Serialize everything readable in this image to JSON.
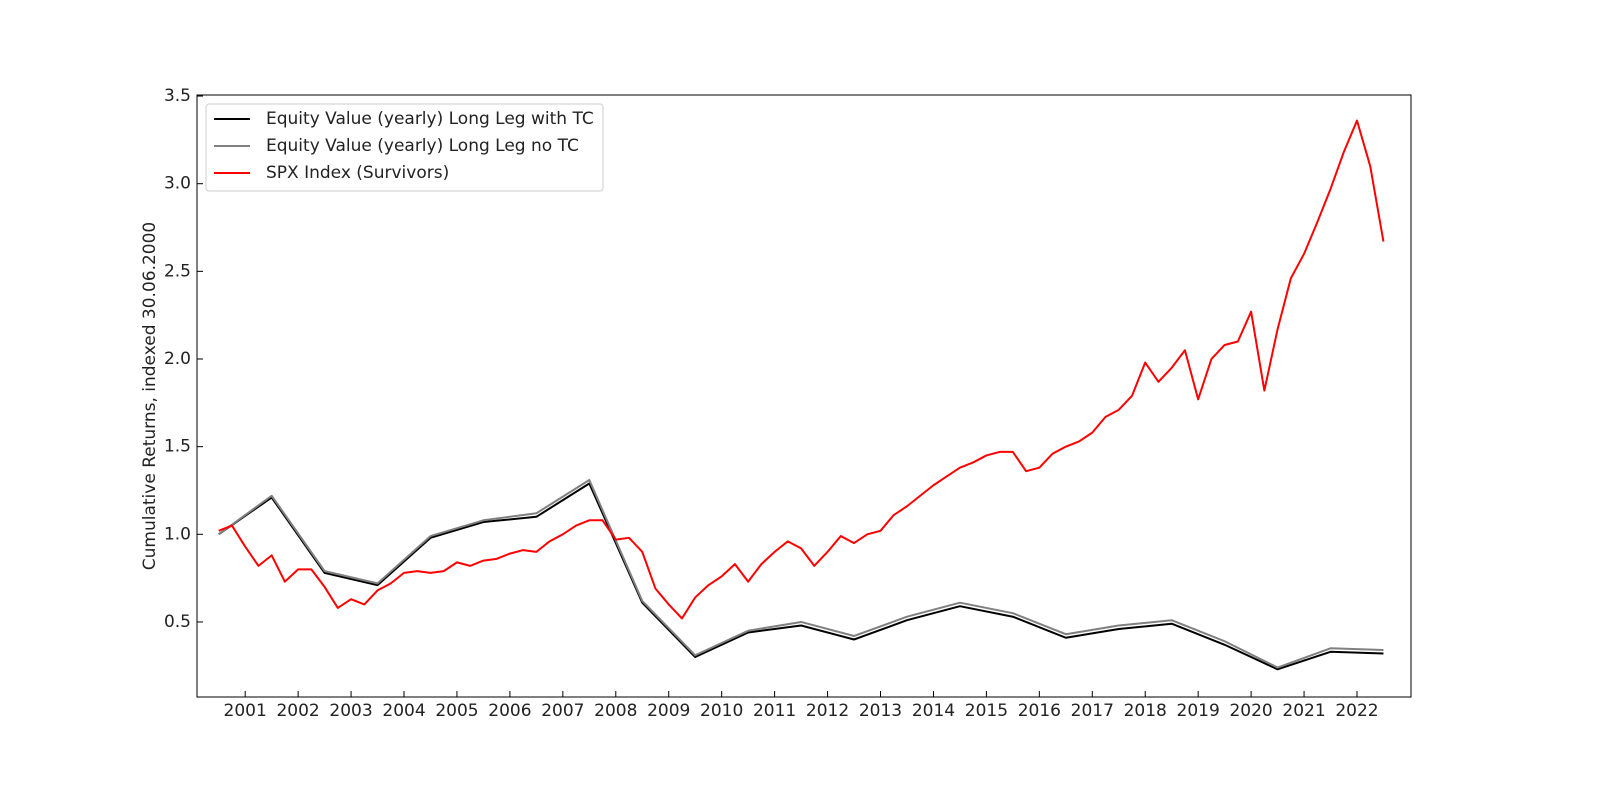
{
  "chart_data": {
    "type": "line",
    "y_label": "Cumulative Returns, indexed 30.06.2000",
    "xlim": [
      2000.09,
      2023.02
    ],
    "xticks": [
      2001,
      2002,
      2003,
      2004,
      2005,
      2006,
      2007,
      2008,
      2009,
      2010,
      2011,
      2012,
      2013,
      2014,
      2015,
      2016,
      2017,
      2018,
      2019,
      2020,
      2021,
      2022
    ],
    "ylim": [
      0.072,
      3.506
    ],
    "yticks": [
      0.5,
      {
        "value": 1,
        "label": "1.0"
      },
      1.5,
      {
        "value": 2,
        "label": "2.0"
      },
      2.5,
      {
        "value": 3,
        "label": "3.0"
      },
      3.5
    ],
    "grid": false,
    "legend": "upper left",
    "series": [
      {
        "name": "Equity Value (yearly) Long Leg with TC",
        "color": "#000000",
        "x": [
          2000.5,
          2001.5,
          2002.5,
          2003.5,
          2004.5,
          2005.5,
          2006.5,
          2007.5,
          2008.5,
          2009.5,
          2010.5,
          2011.5,
          2012.5,
          2013.5,
          2014.5,
          2015.5,
          2016.5,
          2017.5,
          2018.5,
          2019.5,
          2020.5,
          2021.5,
          2022.5
        ],
        "values": [
          1.0,
          1.21,
          0.78,
          0.71,
          0.98,
          1.07,
          1.1,
          1.29,
          0.61,
          0.3,
          0.44,
          0.48,
          0.4,
          0.51,
          0.59,
          0.53,
          0.41,
          0.46,
          0.49,
          0.37,
          0.23,
          0.33,
          0.32
        ]
      },
      {
        "name": "Equity Value (yearly) Long Leg no TC",
        "color": "#808080",
        "x": [
          2000.5,
          2001.5,
          2002.5,
          2003.5,
          2004.5,
          2005.5,
          2006.5,
          2007.5,
          2008.5,
          2009.5,
          2010.5,
          2011.5,
          2012.5,
          2013.5,
          2014.5,
          2015.5,
          2016.5,
          2017.5,
          2018.5,
          2019.5,
          2020.5,
          2021.5,
          2022.5
        ],
        "values": [
          1.0,
          1.22,
          0.79,
          0.72,
          0.99,
          1.08,
          1.12,
          1.31,
          0.62,
          0.31,
          0.45,
          0.5,
          0.42,
          0.53,
          0.61,
          0.55,
          0.43,
          0.48,
          0.51,
          0.39,
          0.24,
          0.35,
          0.34
        ]
      },
      {
        "name": "SPX Index (Survivors)",
        "color": "#ff0000",
        "x": [
          2000.5,
          2000.75,
          2001.0,
          2001.25,
          2001.5,
          2001.75,
          2002.0,
          2002.25,
          2002.5,
          2002.75,
          2003.0,
          2003.25,
          2003.5,
          2003.75,
          2004.0,
          2004.25,
          2004.5,
          2004.75,
          2005.0,
          2005.25,
          2005.5,
          2005.75,
          2006.0,
          2006.25,
          2006.5,
          2006.75,
          2007.0,
          2007.25,
          2007.5,
          2007.75,
          2008.0,
          2008.25,
          2008.5,
          2008.75,
          2009.0,
          2009.25,
          2009.5,
          2009.75,
          2010.0,
          2010.25,
          2010.5,
          2010.75,
          2011.0,
          2011.25,
          2011.5,
          2011.75,
          2012.0,
          2012.25,
          2012.5,
          2012.75,
          2013.0,
          2013.25,
          2013.5,
          2013.75,
          2014.0,
          2014.25,
          2014.5,
          2014.75,
          2015.0,
          2015.25,
          2015.5,
          2015.75,
          2016.0,
          2016.25,
          2016.5,
          2016.75,
          2017.0,
          2017.25,
          2017.5,
          2017.75,
          2018.0,
          2018.25,
          2018.5,
          2018.75,
          2019.0,
          2019.25,
          2019.5,
          2019.75,
          2020.0,
          2020.25,
          2020.5,
          2020.75,
          2021.0,
          2021.25,
          2021.5,
          2021.75,
          2022.0,
          2022.25,
          2022.5
        ],
        "values": [
          1.02,
          1.05,
          0.93,
          0.82,
          0.88,
          0.73,
          0.8,
          0.8,
          0.7,
          0.58,
          0.63,
          0.6,
          0.68,
          0.72,
          0.78,
          0.79,
          0.78,
          0.79,
          0.84,
          0.82,
          0.85,
          0.86,
          0.89,
          0.91,
          0.9,
          0.96,
          1.0,
          1.05,
          1.08,
          1.08,
          0.97,
          0.98,
          0.9,
          0.69,
          0.6,
          0.52,
          0.64,
          0.71,
          0.76,
          0.83,
          0.73,
          0.83,
          0.9,
          0.96,
          0.92,
          0.82,
          0.9,
          0.99,
          0.95,
          1.0,
          1.02,
          1.11,
          1.16,
          1.22,
          1.28,
          1.33,
          1.38,
          1.41,
          1.45,
          1.47,
          1.47,
          1.36,
          1.38,
          1.46,
          1.5,
          1.53,
          1.58,
          1.67,
          1.71,
          1.79,
          1.98,
          1.87,
          1.95,
          2.05,
          1.77,
          2.0,
          2.08,
          2.1,
          2.27,
          1.82,
          2.17,
          2.46,
          2.6,
          2.78,
          2.97,
          3.18,
          3.36,
          3.1,
          2.67
        ]
      }
    ]
  }
}
